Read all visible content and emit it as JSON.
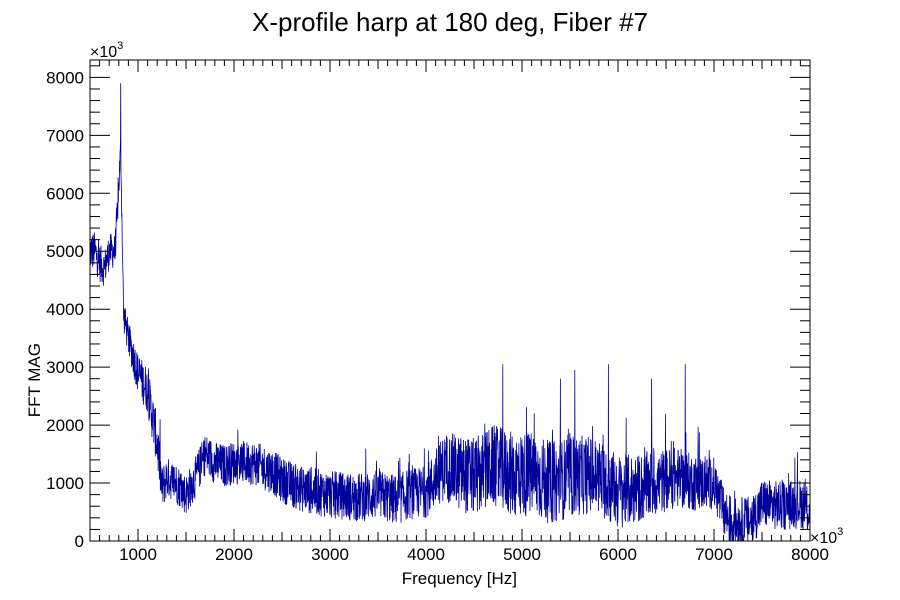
{
  "chart_data": {
    "type": "line",
    "title": "X-profile harp at 180 deg, Fiber #7",
    "xlabel": "Frequency [Hz]",
    "ylabel": "FFT MAG",
    "x_multiplier": "×10",
    "x_multiplier_exp": "3",
    "y_multiplier": "×10",
    "y_multiplier_exp": "3",
    "xlim": [
      500,
      8000
    ],
    "ylim": [
      0,
      8300
    ],
    "xticks": [
      1000,
      2000,
      3000,
      4000,
      5000,
      6000,
      7000,
      8000
    ],
    "yticks": [
      0,
      1000,
      2000,
      3000,
      4000,
      5000,
      6000,
      7000,
      8000
    ],
    "grid": false,
    "line_color": "#00009c",
    "series": [
      {
        "envelope": [
          [
            500,
            5000
          ],
          [
            550,
            5000
          ],
          [
            600,
            4800
          ],
          [
            650,
            4700
          ],
          [
            700,
            5000
          ],
          [
            760,
            5000
          ],
          [
            790,
            5800
          ],
          [
            820,
            6800
          ],
          [
            850,
            3900
          ],
          [
            900,
            3500
          ],
          [
            1000,
            2900
          ],
          [
            1100,
            2600
          ],
          [
            1200,
            1700
          ],
          [
            1250,
            900
          ],
          [
            1300,
            1100
          ],
          [
            1400,
            1000
          ],
          [
            1500,
            800
          ],
          [
            1600,
            1100
          ],
          [
            1700,
            1500
          ],
          [
            1800,
            1350
          ],
          [
            1900,
            1300
          ],
          [
            2000,
            1350
          ],
          [
            2200,
            1350
          ],
          [
            2400,
            1200
          ],
          [
            2500,
            1050
          ],
          [
            2700,
            900
          ],
          [
            3000,
            800
          ],
          [
            3300,
            750
          ],
          [
            3500,
            800
          ],
          [
            3700,
            700
          ],
          [
            3800,
            800
          ],
          [
            4000,
            850
          ],
          [
            4200,
            1300
          ],
          [
            4300,
            1200
          ],
          [
            4500,
            1100
          ],
          [
            4700,
            1300
          ],
          [
            4900,
            1150
          ],
          [
            5100,
            1150
          ],
          [
            5300,
            1000
          ],
          [
            5500,
            1100
          ],
          [
            5700,
            1150
          ],
          [
            5800,
            1100
          ],
          [
            6000,
            850
          ],
          [
            6200,
            900
          ],
          [
            6400,
            1000
          ],
          [
            6600,
            1100
          ],
          [
            6800,
            1000
          ],
          [
            7000,
            1000
          ],
          [
            7100,
            500
          ],
          [
            7200,
            300
          ],
          [
            7400,
            350
          ],
          [
            7500,
            650
          ],
          [
            7700,
            600
          ],
          [
            7900,
            650
          ],
          [
            8000,
            500
          ]
        ],
        "noise": [
          [
            500,
            350
          ],
          [
            850,
            280
          ],
          [
            1200,
            450
          ],
          [
            1300,
            350
          ],
          [
            4000,
            450
          ],
          [
            4300,
            650
          ],
          [
            5000,
            750
          ],
          [
            6000,
            650
          ],
          [
            7000,
            450
          ],
          [
            8000,
            420
          ]
        ],
        "peaks": [
          [
            820,
            7900
          ],
          [
            4800,
            3050
          ],
          [
            5400,
            2800
          ],
          [
            5550,
            2950
          ],
          [
            5900,
            3050
          ],
          [
            6350,
            2800
          ],
          [
            6700,
            3050
          ]
        ]
      }
    ]
  }
}
